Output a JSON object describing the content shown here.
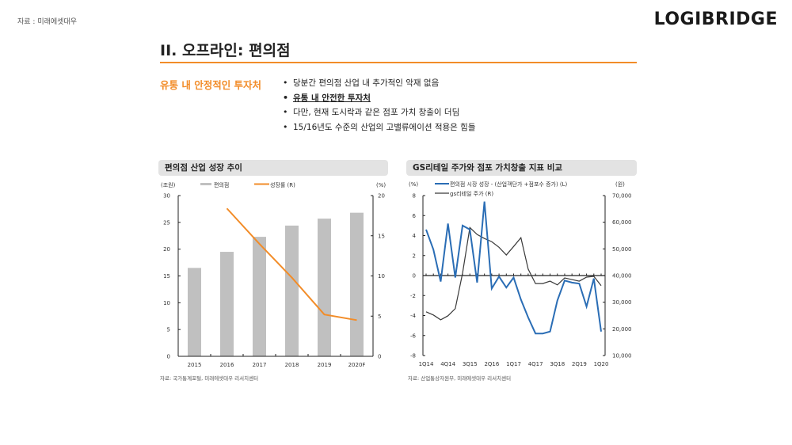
{
  "header": {
    "source_note": "자료 : 미래에셋대우",
    "logo": "LOGIBRIDGE",
    "title": "II. 오프라인: 편의점",
    "accent_color": "#f28c28"
  },
  "summary": {
    "subhead": "유통 내 안정적인 투자처",
    "bullets": [
      "당분간 편의점 산업 내 추가적인 악재 없음",
      "유통 내 안전한 투자처",
      "다만, 현재 도시락과 같은 점포 가치 창출이 더딤",
      "15/16년도 수준의 산업의 고밸류에이션 적용은 힘들"
    ]
  },
  "chart_data": [
    {
      "type": "bar",
      "title": "편의점 산업 성장 추이",
      "categories": [
        "2015",
        "2016",
        "2017",
        "2018",
        "2019",
        "2020F"
      ],
      "series": [
        {
          "name": "편의점",
          "type": "bar",
          "axis": "left",
          "color": "#c0c0c0",
          "values": [
            16.5,
            19.5,
            22.3,
            24.4,
            25.7,
            26.8
          ]
        },
        {
          "name": "성장률 (R)",
          "type": "line",
          "axis": "right",
          "color": "#f28c28",
          "values": [
            null,
            18.4,
            14.0,
            9.8,
            5.2,
            4.5
          ]
        }
      ],
      "ylabel_left": "(조원)",
      "ylabel_right": "(%)",
      "ylim_left": [
        0,
        30
      ],
      "yticks_left": [
        "0",
        "5",
        "10",
        "15",
        "20",
        "25",
        "30"
      ],
      "ylim_right": [
        0,
        20
      ],
      "yticks_right": [
        "0",
        "5",
        "10",
        "15",
        "20"
      ],
      "legend": "top",
      "grid": false,
      "source": "자료: 국가통계포털, 미래에셋대우 리서치센터"
    },
    {
      "type": "line",
      "title": "GS리테일 주가와 점포 가치창출 지표 비교",
      "x": [
        "1Q14",
        "2Q14",
        "3Q14",
        "4Q14",
        "1Q15",
        "2Q15",
        "3Q15",
        "4Q15",
        "1Q16",
        "2Q16",
        "3Q16",
        "4Q16",
        "1Q17",
        "2Q17",
        "3Q17",
        "4Q17",
        "1Q18",
        "2Q18",
        "3Q18",
        "4Q18",
        "1Q19",
        "2Q19",
        "3Q19",
        "4Q19",
        "1Q20"
      ],
      "xticks": [
        "1Q14",
        "4Q14",
        "3Q15",
        "2Q16",
        "1Q17",
        "4Q17",
        "3Q18",
        "2Q19",
        "1Q20"
      ],
      "series": [
        {
          "name": "편의점 시장 성장 - (산업객단가 +점포수 증가) (L)",
          "axis": "left",
          "color": "#2a6db5",
          "values": [
            4.6,
            2.6,
            -0.6,
            5.2,
            -0.2,
            5.0,
            4.6,
            -0.7,
            7.4,
            -1.3,
            -0.1,
            -1.2,
            -0.2,
            -2.4,
            -4.2,
            -5.8,
            -5.8,
            -5.6,
            -2.5,
            -0.5,
            -0.7,
            -0.8,
            -3.1,
            -0.3,
            -5.6
          ]
        },
        {
          "name": "gs리테일 주가 (R)",
          "axis": "right",
          "color": "#3a3a3a",
          "values": [
            26400,
            25200,
            23400,
            24900,
            27600,
            40900,
            58000,
            55400,
            53900,
            52700,
            50600,
            47700,
            50900,
            54200,
            42400,
            37000,
            37000,
            37900,
            36500,
            39100,
            38500,
            37900,
            39400,
            39700,
            36200
          ]
        }
      ],
      "ylabel_left": "(%)",
      "ylabel_right": "(원)",
      "ylim_left": [
        -8,
        8
      ],
      "yticks_left": [
        "-8",
        "-6",
        "-4",
        "-2",
        "0",
        "2",
        "4",
        "6",
        "8"
      ],
      "ylim_right": [
        10000,
        70000
      ],
      "yticks_right": [
        "10,000",
        "20,000",
        "30,000",
        "40,000",
        "50,000",
        "60,000",
        "70,000"
      ],
      "legend": "top-left",
      "grid": false,
      "source": "자료: 산업통상자원부, 미래에셋대우 리서치센터"
    }
  ]
}
